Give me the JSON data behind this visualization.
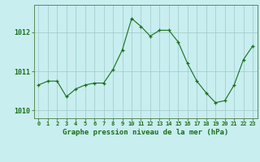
{
  "x": [
    0,
    1,
    2,
    3,
    4,
    5,
    6,
    7,
    8,
    9,
    10,
    11,
    12,
    13,
    14,
    15,
    16,
    17,
    18,
    19,
    20,
    21,
    22,
    23
  ],
  "y": [
    1010.65,
    1010.75,
    1010.75,
    1010.35,
    1010.55,
    1010.65,
    1010.7,
    1010.7,
    1011.05,
    1011.55,
    1012.35,
    1012.15,
    1011.9,
    1012.05,
    1012.05,
    1011.75,
    1011.2,
    1010.75,
    1010.45,
    1010.2,
    1010.25,
    1010.65,
    1011.3,
    1011.65
  ],
  "line_color": "#1a6e1a",
  "marker_color": "#1a6e1a",
  "bg_color": "#c8eef0",
  "grid_color": "#a0c8c8",
  "label_color": "#1a6e1a",
  "xlabel": "Graphe pression niveau de la mer (hPa)",
  "yticks": [
    1010,
    1011,
    1012
  ],
  "ylim": [
    1009.8,
    1012.7
  ],
  "xlim": [
    -0.5,
    23.5
  ]
}
